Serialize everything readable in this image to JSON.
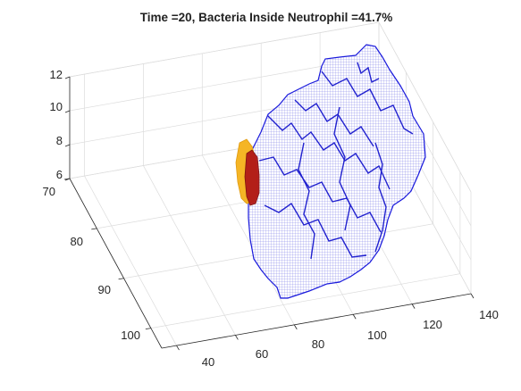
{
  "chart_data": {
    "type": "3d-volume",
    "title": "Time =20, Bacteria Inside Neutrophil  =41.7%",
    "xlabel": "",
    "ylabel": "",
    "zlabel": "",
    "x_axis": {
      "ticks": [
        "40",
        "60",
        "80",
        "100",
        "120",
        "140"
      ],
      "range": [
        35,
        140
      ]
    },
    "y_axis": {
      "ticks": [
        "70",
        "80",
        "90",
        "100"
      ],
      "range": [
        70,
        104
      ]
    },
    "z_axis": {
      "ticks": [
        "6",
        "8",
        "10",
        "12"
      ],
      "range": [
        6,
        12
      ]
    },
    "grid": true,
    "series": [
      {
        "color": "#1a1adc"
      },
      {
        "color": "#f5b525"
      },
      {
        "color": "#b01818"
      }
    ]
  }
}
